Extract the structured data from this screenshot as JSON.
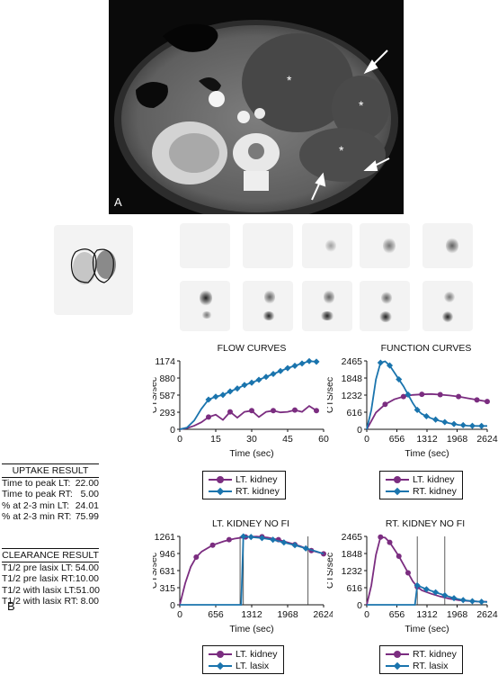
{
  "panel_a": {
    "label": "A",
    "asterisk": "*"
  },
  "panel_b": {
    "label": "B"
  },
  "uptake_result": {
    "title": "UPTAKE RESULT",
    "rows": [
      {
        "label": "Time to peak LT:",
        "value": "22.00"
      },
      {
        "label": "Time to peak RT:",
        "value": "5.00"
      },
      {
        "label": "% at 2-3 min LT:",
        "value": "24.01"
      },
      {
        "label": "% at 2-3 min RT:",
        "value": "75.99"
      }
    ]
  },
  "clearance_result": {
    "title": "CLEARANCE RESULT",
    "rows": [
      {
        "label": "T1/2 pre lasix LT:",
        "value": "54.00"
      },
      {
        "label": "T1/2 pre lasix RT:",
        "value": "10.00"
      },
      {
        "label": "T1/2 with lasix LT:",
        "value": "51.00"
      },
      {
        "label": "T1/2 with lasix RT:",
        "value": "8.00"
      }
    ]
  },
  "colors": {
    "purple": "#7b2d80",
    "blue": "#1a74ad"
  },
  "chart_data": [
    {
      "id": "flow",
      "type": "line",
      "title": "FLOW CURVES",
      "xlabel": "Time (sec)",
      "ylabel": "CTS/sec",
      "xlim": [
        0,
        60
      ],
      "ylim": [
        0,
        1174
      ],
      "xticks": [
        "0",
        "15",
        "30",
        "45",
        "60"
      ],
      "xtick_values": [
        0,
        15,
        30,
        45,
        60
      ],
      "yticks": [
        "0",
        "293",
        "587",
        "880",
        "1174"
      ],
      "ytick_values": [
        0,
        293,
        587,
        880,
        1174
      ],
      "legend": [
        "LT. kidney",
        "RT. kidney"
      ],
      "series": [
        {
          "name": "LT. kidney",
          "color": "#7b2d80",
          "marker": "circle",
          "x": [
            0,
            3,
            6,
            9,
            12,
            15,
            18,
            21,
            24,
            27,
            30,
            33,
            36,
            39,
            42,
            45,
            48,
            51,
            54,
            57
          ],
          "y": [
            0,
            20,
            60,
            120,
            210,
            250,
            160,
            300,
            200,
            300,
            320,
            210,
            300,
            320,
            290,
            300,
            330,
            300,
            400,
            320
          ],
          "marker_x": [
            12,
            21,
            30,
            39,
            48,
            57
          ],
          "marker_y": [
            210,
            300,
            320,
            320,
            330,
            320
          ]
        },
        {
          "name": "RT. kidney",
          "color": "#1a74ad",
          "marker": "diamond",
          "x": [
            0,
            3,
            6,
            9,
            12,
            15,
            18,
            21,
            24,
            27,
            30,
            33,
            36,
            39,
            42,
            45,
            48,
            51,
            54,
            57
          ],
          "y": [
            0,
            30,
            150,
            350,
            510,
            560,
            590,
            650,
            700,
            760,
            800,
            850,
            900,
            950,
            1000,
            1050,
            1090,
            1130,
            1170,
            1160
          ],
          "marker_x": [
            12,
            15,
            18,
            21,
            24,
            27,
            30,
            33,
            36,
            39,
            42,
            45,
            48,
            51,
            54,
            57
          ],
          "marker_y": [
            510,
            560,
            590,
            650,
            700,
            760,
            800,
            850,
            900,
            950,
            1000,
            1050,
            1090,
            1130,
            1170,
            1160
          ]
        }
      ]
    },
    {
      "id": "function",
      "type": "line",
      "title": "FUNCTION CURVES",
      "xlabel": "Time (sec)",
      "ylabel": "CTS/sec",
      "xlim": [
        0,
        2624
      ],
      "ylim": [
        0,
        2465
      ],
      "xticks": [
        "0",
        "656",
        "1312",
        "1968",
        "2624"
      ],
      "xtick_values": [
        0,
        656,
        1312,
        1968,
        2624
      ],
      "yticks": [
        "0",
        "616",
        "1232",
        "1848",
        "2465"
      ],
      "ytick_values": [
        0,
        616,
        1232,
        1848,
        2465
      ],
      "legend": [
        "LT. kidney",
        "RT. kidney"
      ],
      "series": [
        {
          "name": "LT. kidney",
          "color": "#7b2d80",
          "marker": "circle",
          "x": [
            0,
            100,
            200,
            400,
            600,
            800,
            1000,
            1200,
            1400,
            1600,
            1800,
            2000,
            2200,
            2400,
            2624
          ],
          "y": [
            0,
            300,
            600,
            900,
            1080,
            1180,
            1240,
            1260,
            1270,
            1250,
            1220,
            1180,
            1120,
            1060,
            1000
          ],
          "marker_x": [
            400,
            800,
            1200,
            1600,
            2000,
            2400,
            2624
          ],
          "marker_y": [
            900,
            1180,
            1260,
            1250,
            1180,
            1060,
            1000
          ]
        },
        {
          "name": "RT. kidney",
          "color": "#1a74ad",
          "marker": "diamond",
          "x": [
            0,
            100,
            200,
            300,
            400,
            500,
            600,
            700,
            800,
            900,
            1000,
            1100,
            1200,
            1400,
            1600,
            1800,
            2000,
            2200,
            2400,
            2624
          ],
          "y": [
            0,
            700,
            1800,
            2400,
            2450,
            2300,
            2050,
            1800,
            1550,
            1250,
            950,
            700,
            550,
            400,
            300,
            220,
            160,
            130,
            120,
            120
          ],
          "marker_x": [
            300,
            500,
            700,
            900,
            1100,
            1300,
            1500,
            1700,
            1900,
            2100,
            2300,
            2500
          ],
          "marker_y": [
            2400,
            2300,
            1800,
            1250,
            700,
            470,
            350,
            260,
            190,
            150,
            125,
            120
          ]
        }
      ]
    },
    {
      "id": "lt-nofi",
      "type": "line",
      "title": "LT. KIDNEY NO FI",
      "xlabel": "Time (sec)",
      "ylabel": "CTS/sec",
      "xlim": [
        0,
        2624
      ],
      "ylim": [
        0,
        1261
      ],
      "xticks": [
        "0",
        "656",
        "1312",
        "1968",
        "2624"
      ],
      "xtick_values": [
        0,
        656,
        1312,
        1968,
        2624
      ],
      "yticks": [
        "0",
        "315",
        "631",
        "946",
        "1261"
      ],
      "ytick_values": [
        0,
        315,
        631,
        946,
        1261
      ],
      "legend": [
        "LT. kidney",
        "LT. lasix"
      ],
      "vlines": [
        1100,
        1160,
        2340
      ],
      "series": [
        {
          "name": "LT. kidney",
          "color": "#7b2d80",
          "marker": "circle",
          "x": [
            0,
            100,
            200,
            300,
            400,
            600,
            800,
            1000,
            1200,
            1400,
            1600,
            1800,
            2000,
            2200,
            2400,
            2624
          ],
          "y": [
            0,
            400,
            700,
            880,
            980,
            1100,
            1170,
            1220,
            1250,
            1260,
            1240,
            1200,
            1140,
            1080,
            1000,
            940
          ],
          "marker_x": [
            300,
            600,
            900,
            1200,
            1500,
            1800,
            2100,
            2400,
            2624
          ],
          "marker_y": [
            880,
            1100,
            1200,
            1250,
            1255,
            1200,
            1110,
            1000,
            940
          ]
        },
        {
          "name": "LT. lasix",
          "color": "#1a74ad",
          "marker": "diamond",
          "x": [
            0,
            1100,
            1120,
            1160,
            1300,
            1500,
            1700,
            1900,
            2100,
            2300,
            2500,
            2624
          ],
          "y": [
            0,
            0,
            0,
            1260,
            1250,
            1230,
            1200,
            1150,
            1100,
            1040,
            980,
            940
          ],
          "marker_x": [
            1160,
            1300,
            1500,
            1700,
            1900,
            2100,
            2300
          ],
          "marker_y": [
            1260,
            1250,
            1230,
            1200,
            1150,
            1100,
            1040
          ]
        }
      ]
    },
    {
      "id": "rt-nofi",
      "type": "line",
      "title": "RT. KIDNEY NO FI",
      "xlabel": "Time (sec)",
      "ylabel": "CTS/sec",
      "xlim": [
        0,
        2624
      ],
      "ylim": [
        0,
        2465
      ],
      "xticks": [
        "0",
        "656",
        "1312",
        "1968",
        "2624"
      ],
      "xtick_values": [
        0,
        656,
        1312,
        1968,
        2624
      ],
      "yticks": [
        "0",
        "616",
        "1232",
        "1848",
        "2465"
      ],
      "ytick_values": [
        0,
        616,
        1232,
        1848,
        2465
      ],
      "legend": [
        "RT. kidney",
        "RT. lasix"
      ],
      "vlines": [
        1100,
        1700
      ],
      "series": [
        {
          "name": "RT. kidney",
          "color": "#7b2d80",
          "marker": "circle",
          "x": [
            0,
            100,
            200,
            300,
            400,
            500,
            600,
            700,
            800,
            900,
            1000,
            1100,
            1200,
            1400,
            1600,
            1800,
            2000,
            2200,
            2400,
            2624
          ],
          "y": [
            0,
            700,
            1800,
            2440,
            2420,
            2250,
            2000,
            1750,
            1450,
            1150,
            850,
            650,
            520,
            400,
            300,
            220,
            170,
            140,
            120,
            110
          ],
          "marker_x": [
            300,
            500,
            700,
            900,
            1100
          ],
          "marker_y": [
            2440,
            2250,
            1750,
            1150,
            650
          ]
        },
        {
          "name": "RT. lasix",
          "color": "#1a74ad",
          "marker": "diamond",
          "x": [
            0,
            1050,
            1100,
            1300,
            1500,
            1700,
            1900,
            2100,
            2300,
            2500,
            2624
          ],
          "y": [
            0,
            0,
            700,
            560,
            450,
            340,
            240,
            170,
            130,
            110,
            100
          ],
          "marker_x": [
            1100,
            1300,
            1500,
            1700,
            1900,
            2100,
            2300,
            2500
          ],
          "marker_y": [
            700,
            560,
            450,
            340,
            240,
            170,
            130,
            110
          ]
        }
      ]
    }
  ]
}
